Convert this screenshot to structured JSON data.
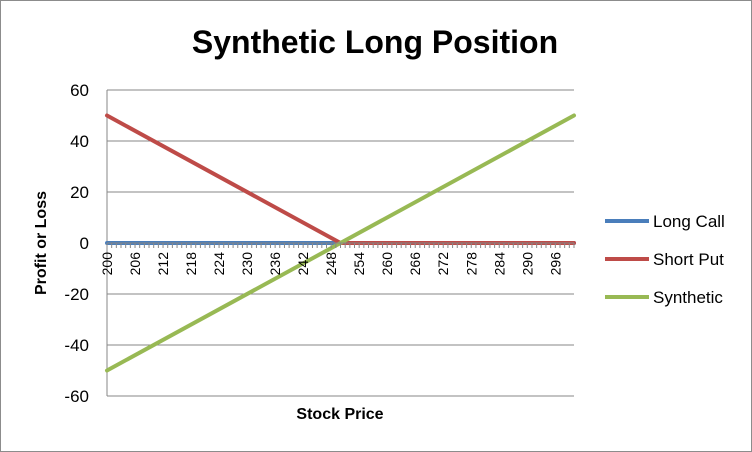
{
  "chart_data": {
    "type": "line",
    "title": "Synthetic Long Position",
    "xlabel": "Stock Price",
    "ylabel": "Profit or Loss",
    "ylim": [
      -60,
      60
    ],
    "yticks": [
      60,
      40,
      20,
      0,
      -20,
      -40,
      -60
    ],
    "xlim": [
      200,
      300
    ],
    "xtick_labels": [
      200,
      206,
      212,
      218,
      224,
      230,
      236,
      242,
      248,
      254,
      260,
      266,
      272,
      278,
      284,
      290,
      296
    ],
    "grid": "horizontal",
    "legend_position": "right",
    "series": [
      {
        "name": "Long Call",
        "color": "#4a7ebb",
        "x": [
          200,
          250,
          300
        ],
        "y": [
          0,
          0,
          0
        ]
      },
      {
        "name": "Short Put",
        "color": "#be4b48",
        "x": [
          200,
          250,
          300
        ],
        "y": [
          50,
          0,
          0
        ]
      },
      {
        "name": "Synthetic",
        "color": "#98b954",
        "x": [
          200,
          300
        ],
        "y": [
          -50,
          50
        ]
      }
    ]
  }
}
